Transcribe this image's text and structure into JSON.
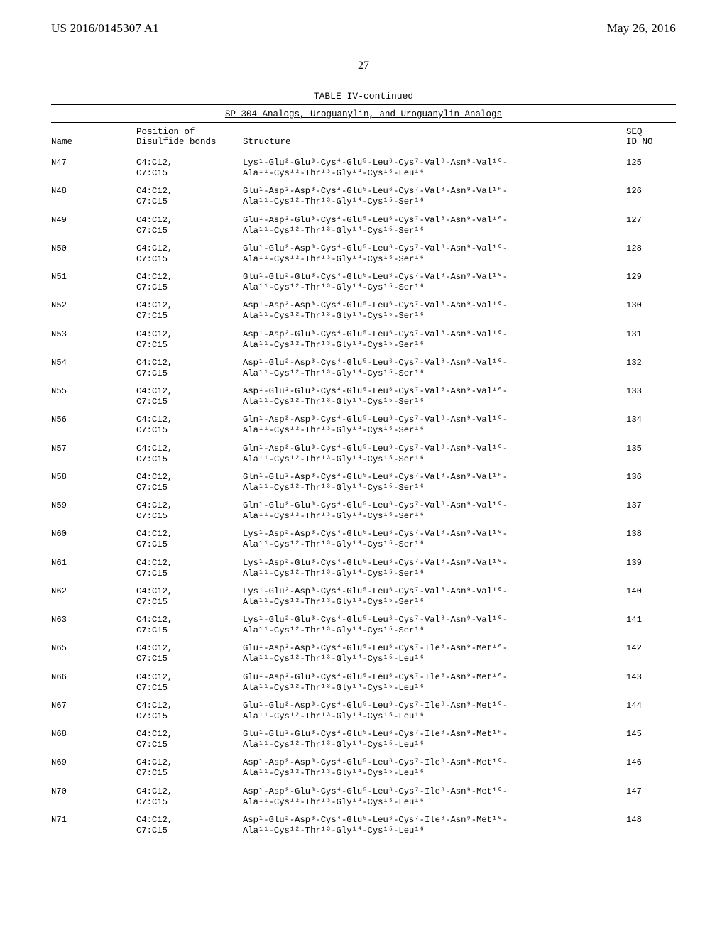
{
  "header": {
    "left": "US 2016/0145307 A1",
    "right": "May 26, 2016"
  },
  "pageNumber": "27",
  "tableTitle": "TABLE IV-continued",
  "subtitle": "SP-304 Analogs, Uroguanylin, and Uroguanylin Analogs",
  "columns": {
    "name": "Name",
    "pos1": "Position of",
    "pos2": "Disulfide bonds",
    "struct": "Structure",
    "seq1": "SEQ",
    "seq2": "ID NO"
  },
  "posLines": [
    "C4:C12,",
    "C7:C15"
  ],
  "tail16_ser": "Ala¹¹-Cys¹²-Thr¹³-Gly¹⁴-Cys¹⁵-Ser¹⁶",
  "tail16_leu": "Ala¹¹-Cys¹²-Thr¹³-Gly¹⁴-Cys¹⁵-Leu¹⁶",
  "rows": [
    {
      "name": "N47",
      "line1": "Lys¹-Glu²-Glu³-Cys⁴-Glu⁵-Leu⁶-Cys⁷-Val⁸-Asn⁹-Val¹⁰-",
      "tail": "leu",
      "seq": "125"
    },
    {
      "name": "N48",
      "line1": "Glu¹-Asp²-Asp³-Cys⁴-Glu⁵-Leu⁶-Cys⁷-Val⁸-Asn⁹-Val¹⁰-",
      "tail": "ser",
      "seq": "126"
    },
    {
      "name": "N49",
      "line1": "Glu¹-Asp²-Glu³-Cys⁴-Glu⁵-Leu⁶-Cys⁷-Val⁸-Asn⁹-Val¹⁰-",
      "tail": "ser",
      "seq": "127"
    },
    {
      "name": "N50",
      "line1": "Glu¹-Glu²-Asp³-Cys⁴-Glu⁵-Leu⁶-Cys⁷-Val⁸-Asn⁹-Val¹⁰-",
      "tail": "ser",
      "seq": "128"
    },
    {
      "name": "N51",
      "line1": "Glu¹-Glu²-Glu³-Cys⁴-Glu⁵-Leu⁶-Cys⁷-Val⁸-Asn⁹-Val¹⁰-",
      "tail": "ser",
      "seq": "129"
    },
    {
      "name": "N52",
      "line1": "Asp¹-Asp²-Asp³-Cys⁴-Glu⁵-Leu⁶-Cys⁷-Val⁸-Asn⁹-Val¹⁰-",
      "tail": "ser",
      "seq": "130"
    },
    {
      "name": "N53",
      "line1": "Asp¹-Asp²-Glu³-Cys⁴-Glu⁵-Leu⁶-Cys⁷-Val⁸-Asn⁹-Val¹⁰-",
      "tail": "ser",
      "seq": "131"
    },
    {
      "name": "N54",
      "line1": "Asp¹-Glu²-Asp³-Cys⁴-Glu⁵-Leu⁶-Cys⁷-Val⁸-Asn⁹-Val¹⁰-",
      "tail": "ser",
      "seq": "132"
    },
    {
      "name": "N55",
      "line1": "Asp¹-Glu²-Glu³-Cys⁴-Glu⁵-Leu⁶-Cys⁷-Val⁸-Asn⁹-Val¹⁰-",
      "tail": "ser",
      "seq": "133"
    },
    {
      "name": "N56",
      "line1": "Gln¹-Asp²-Asp³-Cys⁴-Glu⁵-Leu⁶-Cys⁷-Val⁸-Asn⁹-Val¹⁰-",
      "tail": "ser",
      "seq": "134"
    },
    {
      "name": "N57",
      "line1": "Gln¹-Asp²-Glu³-Cys⁴-Glu⁵-Leu⁶-Cys⁷-Val⁸-Asn⁹-Val¹⁰-",
      "tail": "ser",
      "seq": "135"
    },
    {
      "name": "N58",
      "line1": "Gln¹-Glu²-Asp³-Cys⁴-Glu⁵-Leu⁶-Cys⁷-Val⁸-Asn⁹-Val¹⁰-",
      "tail": "ser",
      "seq": "136"
    },
    {
      "name": "N59",
      "line1": "Gln¹-Glu²-Glu³-Cys⁴-Glu⁵-Leu⁶-Cys⁷-Val⁸-Asn⁹-Val¹⁰-",
      "tail": "ser",
      "seq": "137"
    },
    {
      "name": "N60",
      "line1": "Lys¹-Asp²-Asp³-Cys⁴-Glu⁵-Leu⁶-Cys⁷-Val⁸-Asn⁹-Val¹⁰-",
      "tail": "ser",
      "seq": "138"
    },
    {
      "name": "N61",
      "line1": "Lys¹-Asp²-Glu³-Cys⁴-Glu⁵-Leu⁶-Cys⁷-Val⁸-Asn⁹-Val¹⁰-",
      "tail": "ser",
      "seq": "139"
    },
    {
      "name": "N62",
      "line1": "Lys¹-Glu²-Asp³-Cys⁴-Glu⁵-Leu⁶-Cys⁷-Val⁸-Asn⁹-Val¹⁰-",
      "tail": "ser",
      "seq": "140"
    },
    {
      "name": "N63",
      "line1": "Lys¹-Glu²-Glu³-Cys⁴-Glu⁵-Leu⁶-Cys⁷-Val⁸-Asn⁹-Val¹⁰-",
      "tail": "ser",
      "seq": "141"
    },
    {
      "name": "N65",
      "line1": "Glu¹-Asp²-Asp³-Cys⁴-Glu⁵-Leu⁶-Cys⁷-Ile⁸-Asn⁹-Met¹⁰-",
      "tail": "leu",
      "seq": "142"
    },
    {
      "name": "N66",
      "line1": "Glu¹-Asp²-Glu³-Cys⁴-Glu⁵-Leu⁶-Cys⁷-Ile⁸-Asn⁹-Met¹⁰-",
      "tail": "leu",
      "seq": "143"
    },
    {
      "name": "N67",
      "line1": "Glu¹-Glu²-Asp³-Cys⁴-Glu⁵-Leu⁶-Cys⁷-Ile⁸-Asn⁹-Met¹⁰-",
      "tail": "leu",
      "seq": "144"
    },
    {
      "name": "N68",
      "line1": "Glu¹-Glu²-Glu³-Cys⁴-Glu⁵-Leu⁶-Cys⁷-Ile⁸-Asn⁹-Met¹⁰-",
      "tail": "leu",
      "seq": "145"
    },
    {
      "name": "N69",
      "line1": "Asp¹-Asp²-Asp³-Cys⁴-Glu⁵-Leu⁶-Cys⁷-Ile⁸-Asn⁹-Met¹⁰-",
      "tail": "leu",
      "seq": "146"
    },
    {
      "name": "N70",
      "line1": "Asp¹-Asp²-Glu³-Cys⁴-Glu⁵-Leu⁶-Cys⁷-Ile⁸-Asn⁹-Met¹⁰-",
      "tail": "leu",
      "seq": "147"
    },
    {
      "name": "N71",
      "line1": "Asp¹-Glu²-Asp³-Cys⁴-Glu⁵-Leu⁶-Cys⁷-Ile⁸-Asn⁹-Met¹⁰-",
      "tail": "leu",
      "seq": "148"
    }
  ]
}
